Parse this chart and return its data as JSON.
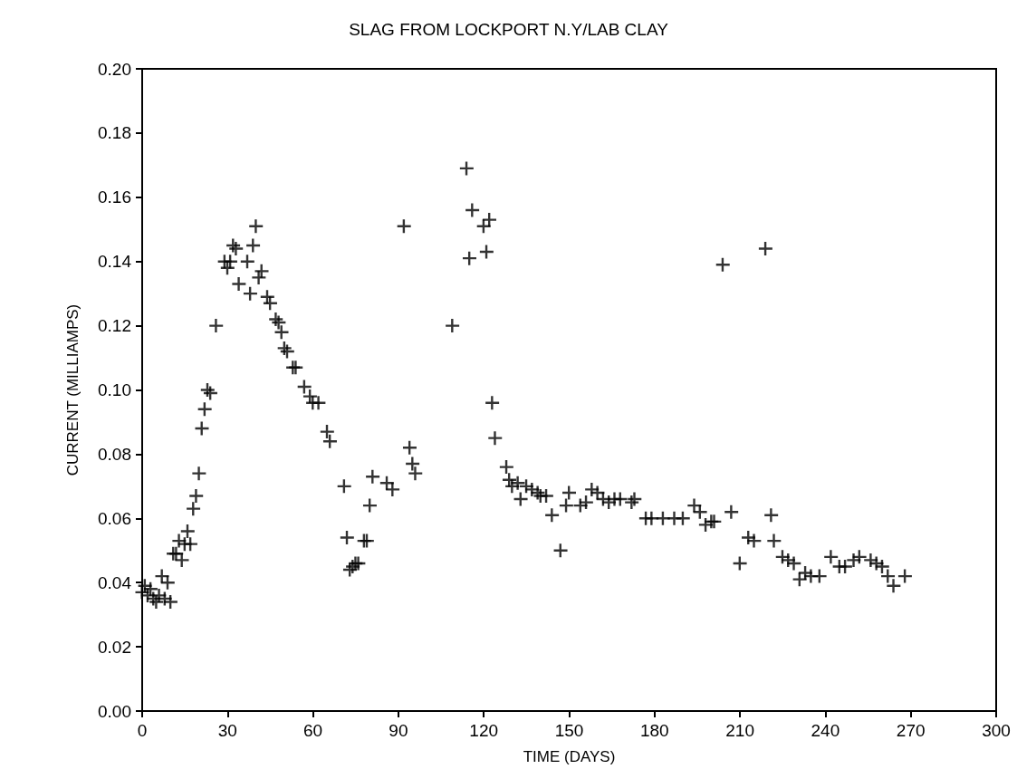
{
  "chart_data": {
    "type": "scatter",
    "title": "SLAG FROM LOCKPORT N.Y/LAB CLAY",
    "xlabel": "TIME (DAYS)",
    "ylabel": "CURRENT (MILLIAMPS)",
    "x": [
      0,
      1,
      2,
      3,
      4,
      5,
      6,
      7,
      8,
      9,
      10,
      11,
      12,
      13,
      14,
      15,
      16,
      17,
      18,
      19,
      20,
      21,
      22,
      23,
      24,
      26,
      29,
      30,
      31,
      32,
      33,
      34,
      37,
      38,
      39,
      40,
      41,
      42,
      44,
      45,
      47,
      48,
      49,
      50,
      51,
      53,
      54,
      57,
      59,
      60,
      62,
      65,
      66,
      71,
      72,
      73,
      74,
      75,
      76,
      78,
      79,
      80,
      81,
      86,
      88,
      92,
      94,
      95,
      96,
      109,
      114,
      115,
      116,
      120,
      121,
      122,
      123,
      124,
      128,
      129,
      130,
      132,
      133,
      135,
      137,
      139,
      140,
      142,
      144,
      147,
      149,
      150,
      154,
      156,
      158,
      160,
      162,
      164,
      166,
      168,
      172,
      173,
      177,
      179,
      183,
      187,
      190,
      194,
      196,
      198,
      200,
      201,
      204,
      207,
      210,
      213,
      215,
      219,
      221,
      222,
      225,
      227,
      229,
      231,
      233,
      235,
      238,
      242,
      245,
      247,
      250,
      252,
      256,
      258,
      260,
      262,
      264,
      268
    ],
    "values": [
      0.037,
      0.039,
      0.036,
      0.038,
      0.035,
      0.034,
      0.036,
      0.042,
      0.035,
      0.04,
      0.034,
      0.049,
      0.049,
      0.053,
      0.047,
      0.052,
      0.056,
      0.052,
      0.063,
      0.067,
      0.074,
      0.088,
      0.094,
      0.1,
      0.099,
      0.12,
      0.14,
      0.138,
      0.14,
      0.145,
      0.144,
      0.133,
      0.14,
      0.13,
      0.145,
      0.151,
      0.135,
      0.137,
      0.129,
      0.127,
      0.122,
      0.121,
      0.118,
      0.113,
      0.112,
      0.107,
      0.107,
      0.101,
      0.098,
      0.096,
      0.096,
      0.087,
      0.084,
      0.07,
      0.054,
      0.044,
      0.045,
      0.046,
      0.046,
      0.053,
      0.053,
      0.064,
      0.073,
      0.071,
      0.069,
      0.151,
      0.082,
      0.077,
      0.074,
      0.12,
      0.169,
      0.141,
      0.156,
      0.151,
      0.143,
      0.153,
      0.096,
      0.085,
      0.076,
      0.072,
      0.07,
      0.071,
      0.066,
      0.07,
      0.069,
      0.068,
      0.067,
      0.067,
      0.061,
      0.05,
      0.064,
      0.068,
      0.064,
      0.065,
      0.069,
      0.068,
      0.066,
      0.065,
      0.066,
      0.066,
      0.065,
      0.066,
      0.06,
      0.06,
      0.06,
      0.06,
      0.06,
      0.064,
      0.062,
      0.058,
      0.059,
      0.059,
      0.139,
      0.062,
      0.046,
      0.054,
      0.053,
      0.144,
      0.061,
      0.053,
      0.048,
      0.047,
      0.046,
      0.041,
      0.043,
      0.042,
      0.042,
      0.048,
      0.045,
      0.045,
      0.047,
      0.048,
      0.047,
      0.046,
      0.045,
      0.042,
      0.039,
      0.042
    ],
    "color": "#000000",
    "marker": "cross",
    "grid": false,
    "xlim": [
      0,
      300
    ],
    "xticks": [
      0,
      30,
      60,
      90,
      120,
      150,
      180,
      210,
      240,
      270,
      300
    ],
    "ylim": [
      0,
      0.2
    ],
    "yticks": [
      {
        "value": 0,
        "label": "0.00"
      },
      {
        "value": 0.02,
        "label": "0.02"
      },
      {
        "value": 0.04,
        "label": "0.04"
      },
      {
        "value": 0.06,
        "label": "0.06"
      },
      {
        "value": 0.08,
        "label": "0.08"
      },
      {
        "value": 0.1,
        "label": "0.10"
      },
      {
        "value": 0.12,
        "label": "0.12"
      },
      {
        "value": 0.14,
        "label": "0.14"
      },
      {
        "value": 0.16,
        "label": "0.16"
      },
      {
        "value": 0.18,
        "label": "0.18"
      },
      {
        "value": 0.2,
        "label": "0.20"
      }
    ]
  }
}
